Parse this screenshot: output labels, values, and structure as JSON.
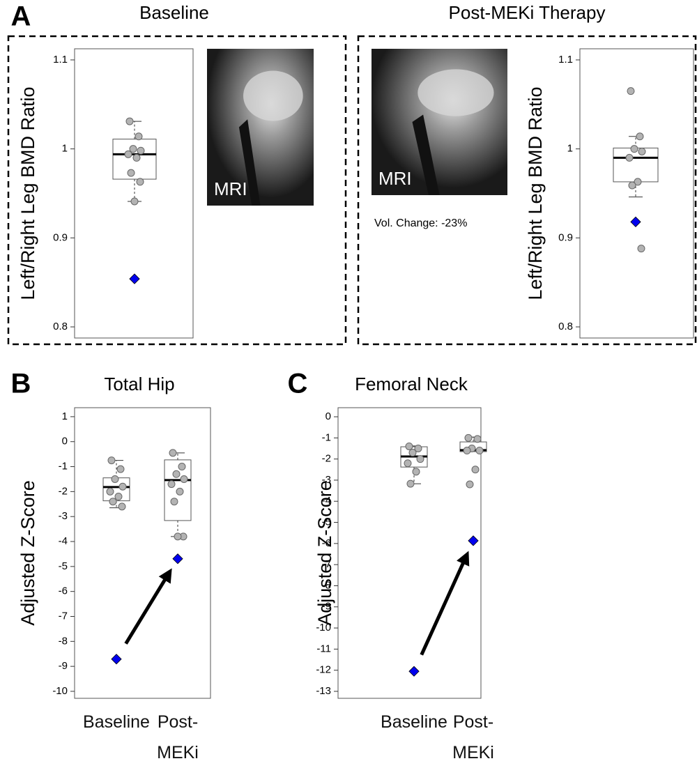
{
  "chart_data": [
    {
      "type": "box",
      "panel": "A",
      "title": "Baseline",
      "ylabel": "Left/Right Leg BMD Ratio",
      "ylim": [
        0.7875,
        1.1125
      ],
      "yticks": [
        0.8,
        0.9,
        1,
        1.1
      ],
      "point_color": "#b3b3b3",
      "highlight_color": "#0000ee",
      "image_label": "MRI",
      "boxes": [
        {
          "q1": 0.966,
          "median": 0.994,
          "q3": 1.011,
          "whisker_low": 0.941,
          "whisker_high": 1.031,
          "points": [
            1.031,
            1.014,
            1.0,
            0.998,
            0.994,
            0.99,
            0.973,
            0.963,
            0.941
          ],
          "highlight": 0.854
        }
      ]
    },
    {
      "type": "box",
      "title": "Post-MEKi Therapy",
      "ylabel": "Left/Right Leg BMD Ratio",
      "ylim": [
        0.7875,
        1.1125
      ],
      "yticks": [
        0.8,
        0.9,
        1,
        1.1
      ],
      "point_color": "#b3b3b3",
      "highlight_color": "#0000ee",
      "image_label": "MRI",
      "annotation": "Vol. Change: -23%",
      "boxes": [
        {
          "q1": 0.963,
          "median": 0.99,
          "q3": 1.001,
          "whisker_low": 0.946,
          "whisker_high": 1.014,
          "points": [
            1.065,
            1.014,
            1.0,
            0.997,
            0.99,
            0.963,
            0.959,
            0.888
          ],
          "highlight": 0.918
        }
      ]
    },
    {
      "type": "box",
      "panel": "B",
      "title": "Total Hip",
      "ylabel": "Adjusted Z-Score",
      "ylim": [
        -10.28,
        1.36
      ],
      "yticks": [
        1,
        0,
        -1,
        -2,
        -3,
        -4,
        -5,
        -6,
        -7,
        -8,
        -9,
        -10
      ],
      "point_color": "#b3b3b3",
      "highlight_color": "#0000ee",
      "arrow": true,
      "categories": [
        "Baseline",
        "Post-MEKi"
      ],
      "boxes": [
        {
          "q1": -2.37,
          "median": -1.82,
          "q3": -1.45,
          "whisker_low": -2.65,
          "whisker_high": -0.75,
          "points": [
            -0.75,
            -1.1,
            -1.5,
            -1.8,
            -2.0,
            -2.2,
            -2.4,
            -2.6
          ],
          "highlight": -8.71
        },
        {
          "q1": -3.16,
          "median": -1.54,
          "q3": -0.73,
          "whisker_low": -3.8,
          "whisker_high": -0.45,
          "points": [
            -0.45,
            -1.0,
            -1.3,
            -1.5,
            -1.7,
            -2.0,
            -2.4,
            -3.8,
            -3.8
          ],
          "highlight": -4.69
        }
      ]
    },
    {
      "type": "box",
      "panel": "C",
      "title": "Femoral Neck",
      "ylabel": "Adjusted Z-Score",
      "ylim": [
        -13.33,
        0.43
      ],
      "yticks": [
        0,
        -1,
        -2,
        -3,
        -4,
        -5,
        -6,
        -7,
        -8,
        -9,
        -10,
        -11,
        -12,
        -13
      ],
      "point_color": "#b3b3b3",
      "highlight_color": "#0000ee",
      "arrow": true,
      "categories": [
        "Baseline",
        "Post-MEKi"
      ],
      "boxes": [
        {
          "q1": -2.38,
          "median": -1.88,
          "q3": -1.42,
          "whisker_low": -3.17,
          "whisker_high": -1.38,
          "points": [
            -1.4,
            -1.5,
            -1.7,
            -2.0,
            -2.2,
            -2.6,
            -3.17
          ],
          "highlight": -12.05
        },
        {
          "q1": -1.65,
          "median": -1.58,
          "q3": -1.19,
          "whisker_low": -1.65,
          "whisker_high": -0.96,
          "points": [
            -1.0,
            -1.05,
            -1.5,
            -1.6,
            -1.6,
            -2.5,
            -3.2
          ],
          "highlight": -5.87
        }
      ]
    }
  ]
}
